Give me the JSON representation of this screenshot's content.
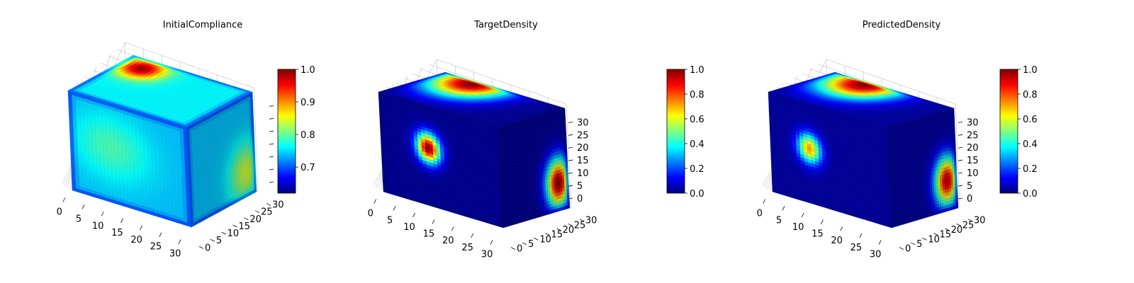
{
  "colormap": "jet",
  "colormap_stops": [
    "#00007f",
    "#0000ff",
    "#007fff",
    "#00ffff",
    "#7fff7f",
    "#ffff00",
    "#ff7f00",
    "#ff0000",
    "#7f0000"
  ],
  "chart_data": [
    {
      "type": "heatmap",
      "title": "InitialCompliance",
      "x_ticks": [
        "0",
        "5",
        "10",
        "15",
        "20",
        "25",
        "30"
      ],
      "y_ticks": [
        "0",
        "5",
        "10",
        "15",
        "20",
        "25",
        "30"
      ],
      "z_ticks": [],
      "grid": true,
      "color_range": [
        0.62,
        1.0
      ],
      "colorbar_ticks": [
        "0.7",
        "0.8",
        "0.9",
        "1.0"
      ],
      "colorbar_tick_values": [
        0.7,
        0.8,
        0.9,
        1.0
      ],
      "faces": {
        "front_base": 0.74,
        "side_base": 0.74,
        "top_base": 0.76,
        "front_blobs": [
          {
            "cx": 0.35,
            "cy": 0.45,
            "rx": 0.4,
            "ry": 0.4,
            "value": 0.79
          }
        ],
        "side_blobs": [
          {
            "cx": 0.85,
            "cy": 0.75,
            "rx": 0.3,
            "ry": 0.35,
            "value": 0.84
          }
        ],
        "top_blobs": [
          {
            "cx": 0.18,
            "cy": 0.2,
            "rx": 0.22,
            "ry": 0.28,
            "value": 0.99
          }
        ],
        "edge_low_value": 0.65
      }
    },
    {
      "type": "heatmap",
      "title": "TargetDensity",
      "x_ticks": [
        "0",
        "5",
        "10",
        "15",
        "20",
        "25",
        "30"
      ],
      "y_ticks": [
        "0",
        "5",
        "10",
        "15",
        "20",
        "25",
        "30"
      ],
      "z_ticks": [
        "0",
        "5",
        "10",
        "15",
        "20",
        "25",
        "30"
      ],
      "grid": true,
      "color_range": [
        0.0,
        1.0
      ],
      "colorbar_ticks": [
        "0.0",
        "0.2",
        "0.4",
        "0.6",
        "0.8",
        "1.0"
      ],
      "colorbar_tick_values": [
        0.0,
        0.2,
        0.4,
        0.6,
        0.8,
        1.0
      ],
      "faces": {
        "front_base": 0.02,
        "side_base": 0.02,
        "top_base": 0.02,
        "front_blobs": [
          {
            "cx": 0.4,
            "cy": 0.42,
            "rx": 0.12,
            "ry": 0.18,
            "value": 1.0
          }
        ],
        "side_blobs": [
          {
            "cx": 0.85,
            "cy": 0.72,
            "rx": 0.22,
            "ry": 0.3,
            "value": 1.0
          }
        ],
        "top_blobs": [
          {
            "cx": 0.28,
            "cy": 0.08,
            "rx": 0.34,
            "ry": 0.62,
            "value": 1.0
          }
        ],
        "edge_low_value": 0.0
      }
    },
    {
      "type": "heatmap",
      "title": "PredictedDensity",
      "x_ticks": [
        "0",
        "5",
        "10",
        "15",
        "20",
        "25",
        "30"
      ],
      "y_ticks": [
        "0",
        "5",
        "10",
        "15",
        "20",
        "25",
        "30"
      ],
      "z_ticks": [
        "0",
        "5",
        "10",
        "15",
        "20",
        "25",
        "30"
      ],
      "grid": true,
      "color_range": [
        0.0,
        1.0
      ],
      "colorbar_ticks": [
        "0.0",
        "0.2",
        "0.4",
        "0.6",
        "0.8",
        "1.0"
      ],
      "colorbar_tick_values": [
        0.0,
        0.2,
        0.4,
        0.6,
        0.8,
        1.0
      ],
      "faces": {
        "front_base": 0.03,
        "side_base": 0.03,
        "top_base": 0.03,
        "front_blobs": [
          {
            "cx": 0.33,
            "cy": 0.45,
            "rx": 0.12,
            "ry": 0.18,
            "value": 0.72
          }
        ],
        "side_blobs": [
          {
            "cx": 0.85,
            "cy": 0.7,
            "rx": 0.22,
            "ry": 0.3,
            "value": 0.95
          }
        ],
        "top_blobs": [
          {
            "cx": 0.3,
            "cy": 0.08,
            "rx": 0.34,
            "ry": 0.62,
            "value": 1.0
          }
        ],
        "edge_low_value": 0.02
      }
    }
  ]
}
